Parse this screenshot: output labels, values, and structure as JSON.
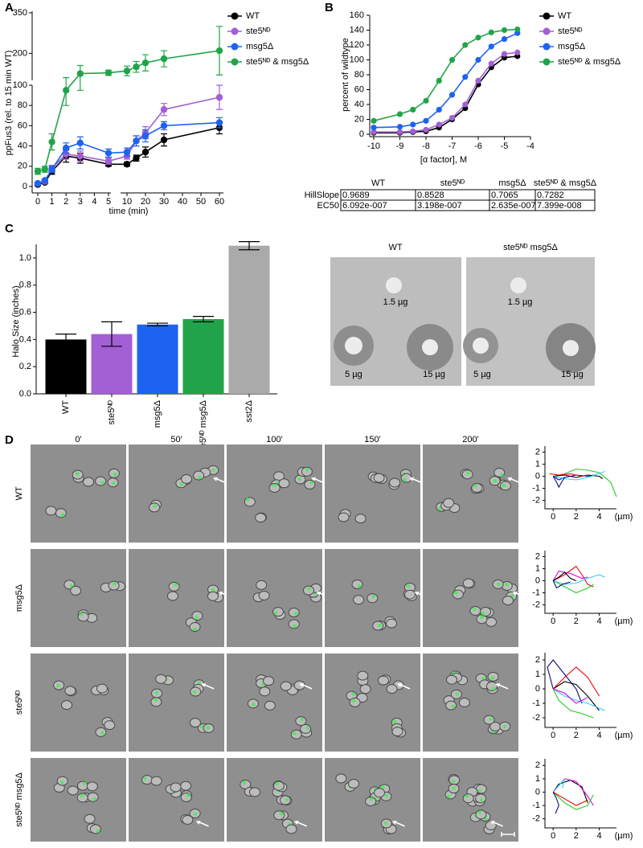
{
  "panel_labels": [
    "A",
    "B",
    "C",
    "D"
  ],
  "chart_data": [
    {
      "type": "line",
      "markers": true,
      "legend": "right",
      "ylabel": "ppFus3 (rel. to 15 min WT)",
      "xlabel": "time (min)",
      "x": [
        0,
        0.5,
        1,
        2,
        3,
        5,
        10,
        15,
        20,
        30,
        60
      ],
      "xlim": [
        0,
        60
      ],
      "xsegments": [
        [
          0,
          5
        ],
        [
          10,
          60
        ]
      ],
      "ylim": [
        0,
        350
      ],
      "ysegments": [
        [
          0,
          100
        ],
        [
          100,
          350
        ]
      ],
      "xticks": [
        0,
        1,
        2,
        3,
        4,
        5,
        10,
        20,
        30,
        40,
        50,
        60
      ],
      "yticks": [
        0,
        20,
        40,
        60,
        80,
        100,
        200,
        350
      ],
      "series": [
        {
          "name": "WT",
          "color": "#000000",
          "values": [
            2,
            4,
            15,
            30,
            28,
            22,
            22,
            28,
            34,
            46,
            58
          ],
          "errors": [
            1,
            1,
            3,
            6,
            5,
            2,
            2,
            3,
            5,
            6,
            6
          ]
        },
        {
          "name": "ste5ᴺᴰ",
          "color": "#a35fd4",
          "values": [
            3,
            5,
            18,
            32,
            30,
            25,
            30,
            45,
            53,
            76,
            88
          ],
          "errors": [
            1,
            1,
            3,
            5,
            5,
            3,
            3,
            5,
            6,
            6,
            12
          ]
        },
        {
          "name": "msg5Δ",
          "color": "#1e63f0",
          "values": [
            3,
            6,
            17,
            38,
            43,
            33,
            34,
            45,
            50,
            60,
            63
          ],
          "errors": [
            1,
            1,
            3,
            5,
            6,
            4,
            4,
            5,
            6,
            4,
            5
          ]
        },
        {
          "name": "ste5ᴺᴰ & msg5Δ",
          "color": "#21a449",
          "values": [
            15,
            17,
            44,
            95,
            125,
            128,
            135,
            150,
            165,
            180,
            210
          ],
          "errors": [
            3,
            3,
            8,
            15,
            30,
            10,
            18,
            20,
            30,
            30,
            90
          ]
        }
      ]
    },
    {
      "type": "line",
      "markers": true,
      "legend": "right",
      "ylabel": "percent of wildtype",
      "xlabel": "[α factor], M",
      "x": [
        -10,
        -9,
        -8.5,
        -8,
        -7.5,
        -7,
        -6.5,
        -6,
        -5.5,
        -5,
        -4.5
      ],
      "xlim": [
        -10,
        -4
      ],
      "ylim": [
        0,
        160
      ],
      "xticks": [
        -10,
        -9,
        -8,
        -7,
        -6,
        -5,
        -4
      ],
      "yticks": [
        0,
        20,
        40,
        60,
        80,
        100,
        120,
        140,
        160
      ],
      "series": [
        {
          "name": "WT",
          "color": "#000000",
          "values": [
            2,
            2,
            3,
            4,
            9,
            20,
            35,
            67,
            90,
            103,
            105
          ]
        },
        {
          "name": "ste5ᴺᴰ",
          "color": "#a35fd4",
          "values": [
            3,
            3,
            4,
            6,
            13,
            22,
            40,
            72,
            95,
            108,
            110
          ]
        },
        {
          "name": "msg5Δ",
          "color": "#1e63f0",
          "values": [
            9,
            10,
            13,
            18,
            33,
            53,
            77,
            100,
            118,
            128,
            136
          ]
        },
        {
          "name": "ste5ᴺᴰ & msg5Δ",
          "color": "#21a449",
          "values": [
            18,
            27,
            33,
            45,
            72,
            100,
            120,
            130,
            137,
            140,
            141
          ]
        }
      ]
    },
    {
      "type": "bar",
      "ylabel": "Halo Size (inches)",
      "categories": [
        "WT",
        "ste5ᴺᴰ",
        "msg5Δ",
        "ste5ᴺᴰ msg5Δ",
        "sst2Δ"
      ],
      "values": [
        0.4,
        0.44,
        0.51,
        0.55,
        1.09
      ],
      "errors": [
        0.04,
        0.09,
        0.01,
        0.02,
        0.03
      ],
      "colors": [
        "#000000",
        "#a35fd4",
        "#1e63f0",
        "#21a449",
        "#aaaaaa"
      ],
      "ylim": [
        0,
        1.1
      ],
      "yticks": [
        {
          "value": 0,
          "label": "0.0"
        },
        0.2,
        0.4,
        0.6,
        0.8,
        {
          "value": 1,
          "label": "1.0"
        }
      ]
    },
    {
      "type": "line",
      "xlabel": "(µm)",
      "xlim": [
        -0.5,
        5.5
      ],
      "ylim": [
        -2.5,
        2.5
      ],
      "xticks": [
        0,
        2,
        4
      ],
      "yticks": [
        -2,
        -1,
        0,
        1,
        2
      ],
      "series": [
        {
          "color": "#22cc22",
          "x": [
            0,
            1,
            2,
            3,
            4,
            5,
            5.5
          ],
          "values": [
            0,
            0.2,
            0.6,
            0.5,
            0.3,
            -0.5,
            -1.7
          ]
        },
        {
          "color": "#0000cc",
          "x": [
            0,
            0.5,
            1,
            2,
            3,
            3.5
          ],
          "values": [
            0,
            -0.3,
            -0.1,
            0.1,
            0,
            0.1
          ]
        },
        {
          "color": "#000000",
          "x": [
            0,
            1,
            2,
            3,
            4,
            4.3
          ],
          "values": [
            0,
            0.1,
            -0.1,
            0.1,
            0,
            -0.2
          ]
        },
        {
          "color": "#ee0000",
          "x": [
            -0.3,
            0.5,
            1.5,
            2.5,
            3
          ],
          "values": [
            0.2,
            0.1,
            0.2,
            0,
            0.1
          ]
        },
        {
          "color": "#33ccff",
          "x": [
            0,
            1,
            2,
            3,
            4.5
          ],
          "values": [
            0,
            -0.2,
            -0.3,
            -0.1,
            0.4
          ]
        },
        {
          "color": "#0a0a80",
          "x": [
            0,
            0.3,
            0.5,
            0.8,
            1
          ],
          "values": [
            0,
            -0.5,
            -0.9,
            -0.4,
            -0.1
          ]
        }
      ]
    },
    {
      "type": "line",
      "xlabel": "(µm)",
      "xlim": [
        -0.5,
        5.5
      ],
      "ylim": [
        -2.5,
        2.5
      ],
      "xticks": [
        0,
        2,
        4
      ],
      "yticks": [
        -2,
        -1,
        0,
        1,
        2
      ],
      "series": [
        {
          "color": "#ee0000",
          "x": [
            0,
            1,
            2,
            2.5,
            3,
            3.5
          ],
          "values": [
            0,
            0.5,
            1.2,
            0.5,
            -0.3,
            -0.5
          ]
        },
        {
          "color": "#22cc22",
          "x": [
            0,
            1,
            2,
            3,
            3.5
          ],
          "values": [
            0,
            -0.5,
            -1,
            -0.6,
            -0.3
          ]
        },
        {
          "color": "#33ccff",
          "x": [
            0,
            1,
            2,
            3,
            4,
            4.5
          ],
          "values": [
            0,
            -0.3,
            -0.2,
            0.2,
            0.5,
            0.3
          ]
        },
        {
          "color": "#dd00dd",
          "x": [
            0,
            0.5,
            1.5,
            2.5,
            3
          ],
          "values": [
            0,
            0.8,
            0.6,
            0.2,
            0.3
          ]
        },
        {
          "color": "#000000",
          "x": [
            0,
            0.5,
            1,
            1.5,
            2
          ],
          "values": [
            0,
            0.3,
            0.7,
            0.2,
            0
          ]
        },
        {
          "color": "#0a0a80",
          "x": [
            0,
            0.3,
            0.8,
            1.5
          ],
          "values": [
            0,
            -0.6,
            -0.3,
            -0.1
          ]
        }
      ]
    },
    {
      "type": "line",
      "xlabel": "(µm)",
      "xlim": [
        -0.5,
        5.5
      ],
      "ylim": [
        -2.5,
        2.5
      ],
      "xticks": [
        0,
        2,
        4
      ],
      "yticks": [
        -2,
        -1,
        0,
        1,
        2
      ],
      "series": [
        {
          "color": "#0a0a80",
          "x": [
            0,
            -0.5,
            0,
            1,
            2,
            2.5
          ],
          "values": [
            0,
            1.5,
            2,
            1,
            0,
            -1
          ]
        },
        {
          "color": "#000000",
          "x": [
            0,
            1,
            2,
            3,
            3.5,
            4
          ],
          "values": [
            0,
            0.5,
            0.3,
            -0.5,
            -1,
            -1.5
          ]
        },
        {
          "color": "#ee0000",
          "x": [
            0,
            1,
            2,
            3,
            4
          ],
          "values": [
            0,
            0.8,
            1.5,
            0.8,
            -0.5
          ]
        },
        {
          "color": "#22cc22",
          "x": [
            0,
            0.5,
            1.5,
            2.5,
            3.5
          ],
          "values": [
            0,
            -0.8,
            -1.5,
            -1.7,
            -2
          ]
        },
        {
          "color": "#33ccff",
          "x": [
            0,
            1,
            2,
            3,
            4.5
          ],
          "values": [
            0,
            -0.5,
            -0.8,
            -1,
            -1.5
          ]
        },
        {
          "color": "#dd00dd",
          "x": [
            0,
            1,
            2,
            3
          ],
          "values": [
            0,
            -0.3,
            -1,
            -0.6
          ]
        }
      ]
    },
    {
      "type": "line",
      "xlabel": "(µm)",
      "xlim": [
        -0.5,
        5.5
      ],
      "ylim": [
        -2.5,
        2.5
      ],
      "xticks": [
        0,
        2,
        4
      ],
      "yticks": [
        -2,
        -1,
        0,
        1,
        2
      ],
      "series": [
        {
          "color": "#000000",
          "x": [
            0,
            0.5,
            1.5,
            2.5,
            3
          ],
          "values": [
            0,
            0.6,
            0.9,
            0.4,
            -0.8
          ]
        },
        {
          "color": "#dd00dd",
          "x": [
            0,
            1,
            2,
            3,
            3.5
          ],
          "values": [
            0,
            1,
            0.8,
            -0.3,
            -1
          ]
        },
        {
          "color": "#22cc22",
          "x": [
            0,
            1,
            2,
            3,
            3.5
          ],
          "values": [
            0,
            -0.8,
            -1.3,
            -1,
            -0.2
          ]
        },
        {
          "color": "#33ccff",
          "x": [
            0,
            0.5,
            1,
            0.8
          ],
          "values": [
            0,
            0.5,
            1,
            0.3
          ]
        },
        {
          "color": "#ee0000",
          "x": [
            0,
            1,
            2,
            3
          ],
          "values": [
            0,
            -0.5,
            -1,
            -0.6
          ]
        },
        {
          "color": "#0a0a80",
          "x": [
            0,
            0.3,
            0.5,
            0.2
          ],
          "values": [
            0,
            -0.5,
            -1,
            -1.6
          ]
        }
      ]
    }
  ],
  "table": {
    "columns": [
      "WT",
      "ste5ᴺᴰ",
      "msg5Δ",
      "ste5ᴺᴰ & msg5Δ"
    ],
    "rows": [
      [
        "HillSlope",
        "0.9689",
        "0.8528",
        "0.7065",
        "0.7282"
      ],
      [
        "EC50",
        "6.092e-007",
        "3.198e-007",
        "2.635e-007",
        "7.399e-008"
      ]
    ]
  },
  "halo_assay": [
    {
      "title": "WT",
      "doses": [
        "1.5 µg",
        "5 µg",
        "15 µg"
      ]
    },
    {
      "title": "ste5ᴺᴰ msg5Δ",
      "doses": [
        "1.5 µg",
        "5 µg",
        "15 µg"
      ]
    }
  ],
  "time_lapse": {
    "times": [
      "0'",
      "50'",
      "100'",
      "150'",
      "200'"
    ],
    "rows": [
      "WT",
      "msg5Δ",
      "ste5ᴺᴰ",
      "ste5ᴺᴰ msg5Δ"
    ]
  }
}
